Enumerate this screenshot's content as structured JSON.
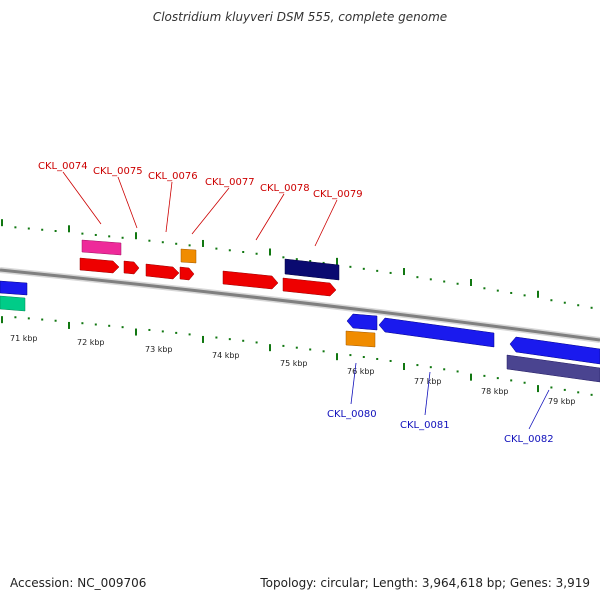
{
  "title": "Clostridium kluyveri DSM 555, complete genome",
  "footer": {
    "accession": "Accession: NC_009706",
    "summary": "Topology: circular; Length: 3,964,618 bp; Genes: 3,919"
  },
  "ticks": [
    "71 kbp",
    "72 kbp",
    "73 kbp",
    "74 kbp",
    "75 kbp",
    "76 kbp",
    "77 kbp",
    "78 kbp",
    "79 kbp"
  ],
  "gene_labels_top": [
    "CKL_0074",
    "CKL_0075",
    "CKL_0076",
    "CKL_0077",
    "CKL_0078",
    "CKL_0079"
  ],
  "gene_labels_bottom": [
    "CKL_0080",
    "CKL_0081",
    "CKL_0082"
  ],
  "colors": {
    "forward_gene": "#ee0000",
    "reverse_gene": "#1a1aee",
    "label_top": "#cc0000",
    "label_bottom": "#1010bb",
    "tick": "#117711",
    "backbone": "#888888",
    "orange": "#f08c00",
    "pink": "#ee2a9a",
    "navy": "#0a0a70",
    "slate": "#4a4490",
    "teal": "#00cc88"
  }
}
